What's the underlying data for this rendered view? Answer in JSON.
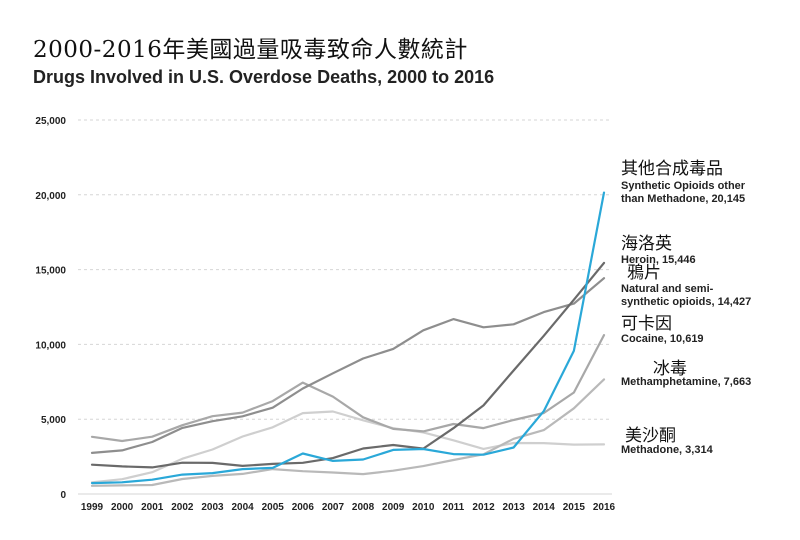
{
  "page": {
    "title_zh": "2000-2016年美國過量吸毒致命人數統計"
  },
  "chart_data": {
    "type": "line",
    "title": "Drugs Involved in U.S. Overdose Deaths, 2000 to 2016",
    "subtitle_zh": "2000-2016年美國過量吸毒致命人數統計",
    "xlabel": "",
    "ylabel": "",
    "ylim": [
      0,
      25000
    ],
    "yticks": [
      0,
      5000,
      10000,
      15000,
      20000,
      25000
    ],
    "ytick_labels": [
      "0",
      "5,000",
      "10,000",
      "15,000",
      "20,000",
      "25,000"
    ],
    "grid": true,
    "legend": "direct-labels-right",
    "x": [
      1999,
      2000,
      2001,
      2002,
      2003,
      2004,
      2005,
      2006,
      2007,
      2008,
      2009,
      2010,
      2011,
      2012,
      2013,
      2014,
      2015,
      2016
    ],
    "xtick_labels": [
      "1999",
      "2000",
      "2001",
      "2002",
      "2003",
      "2004",
      "2005",
      "2006",
      "2007",
      "2008",
      "2009",
      "2010",
      "2011",
      "2012",
      "2013",
      "2014",
      "2015",
      "2016"
    ],
    "series": [
      {
        "name": "Synthetic Opioids other than Methadone",
        "name_zh": "其他合成毒品",
        "label_lines": [
          "Synthetic Opioids other",
          "than Methadone, 20,145"
        ],
        "color": "#2aa8d8",
        "values": [
          730,
          782,
          957,
          1295,
          1400,
          1664,
          1742,
          2707,
          2213,
          2306,
          2946,
          3007,
          2666,
          2628,
          3105,
          5544,
          9580,
          20145
        ]
      },
      {
        "name": "Heroin",
        "name_zh": "海洛英",
        "label_lines": [
          "Heroin, 15,446"
        ],
        "color": "#6a6a6a",
        "values": [
          1960,
          1842,
          1779,
          2089,
          2080,
          1878,
          2009,
          2088,
          2399,
          3041,
          3278,
          3036,
          4397,
          5925,
          8257,
          10574,
          12989,
          15446
        ]
      },
      {
        "name": "Natural and semi-synthetic opioids",
        "name_zh": "鴉片",
        "label_lines": [
          "Natural and semi-",
          "synthetic opioids, 14,427"
        ],
        "color": "#8e8e8e",
        "values": [
          2749,
          2917,
          3476,
          4416,
          4867,
          5197,
          5770,
          7050,
          8069,
          9058,
          9696,
          10943,
          11693,
          11140,
          11346,
          12159,
          12727,
          14427
        ]
      },
      {
        "name": "Cocaine",
        "name_zh": "可卡因",
        "label_lines": [
          "Cocaine, 10,619"
        ],
        "color": "#a8a8a8",
        "values": [
          3822,
          3544,
          3833,
          4599,
          5199,
          5443,
          6208,
          7448,
          6512,
          5129,
          4350,
          4183,
          4681,
          4404,
          4944,
          5415,
          6784,
          10619
        ]
      },
      {
        "name": "Methamphetamine",
        "name_zh": "冰毒",
        "label_lines": [
          "Methamphetamine, 7,663"
        ],
        "color": "#b9b9b9",
        "values": [
          547,
          578,
          604,
          1003,
          1210,
          1341,
          1666,
          1521,
          1436,
          1329,
          1559,
          1864,
          2275,
          2655,
          3692,
          4274,
          5727,
          7663
        ]
      },
      {
        "name": "Methadone",
        "name_zh": "美沙酮",
        "label_lines": [
          "Methadone, 3,314"
        ],
        "color": "#cfcfcf",
        "values": [
          784,
          988,
          1456,
          2358,
          2972,
          3845,
          4460,
          5406,
          5518,
          4924,
          4398,
          4116,
          3591,
          3013,
          3410,
          3400,
          3301,
          3314
        ]
      }
    ]
  }
}
